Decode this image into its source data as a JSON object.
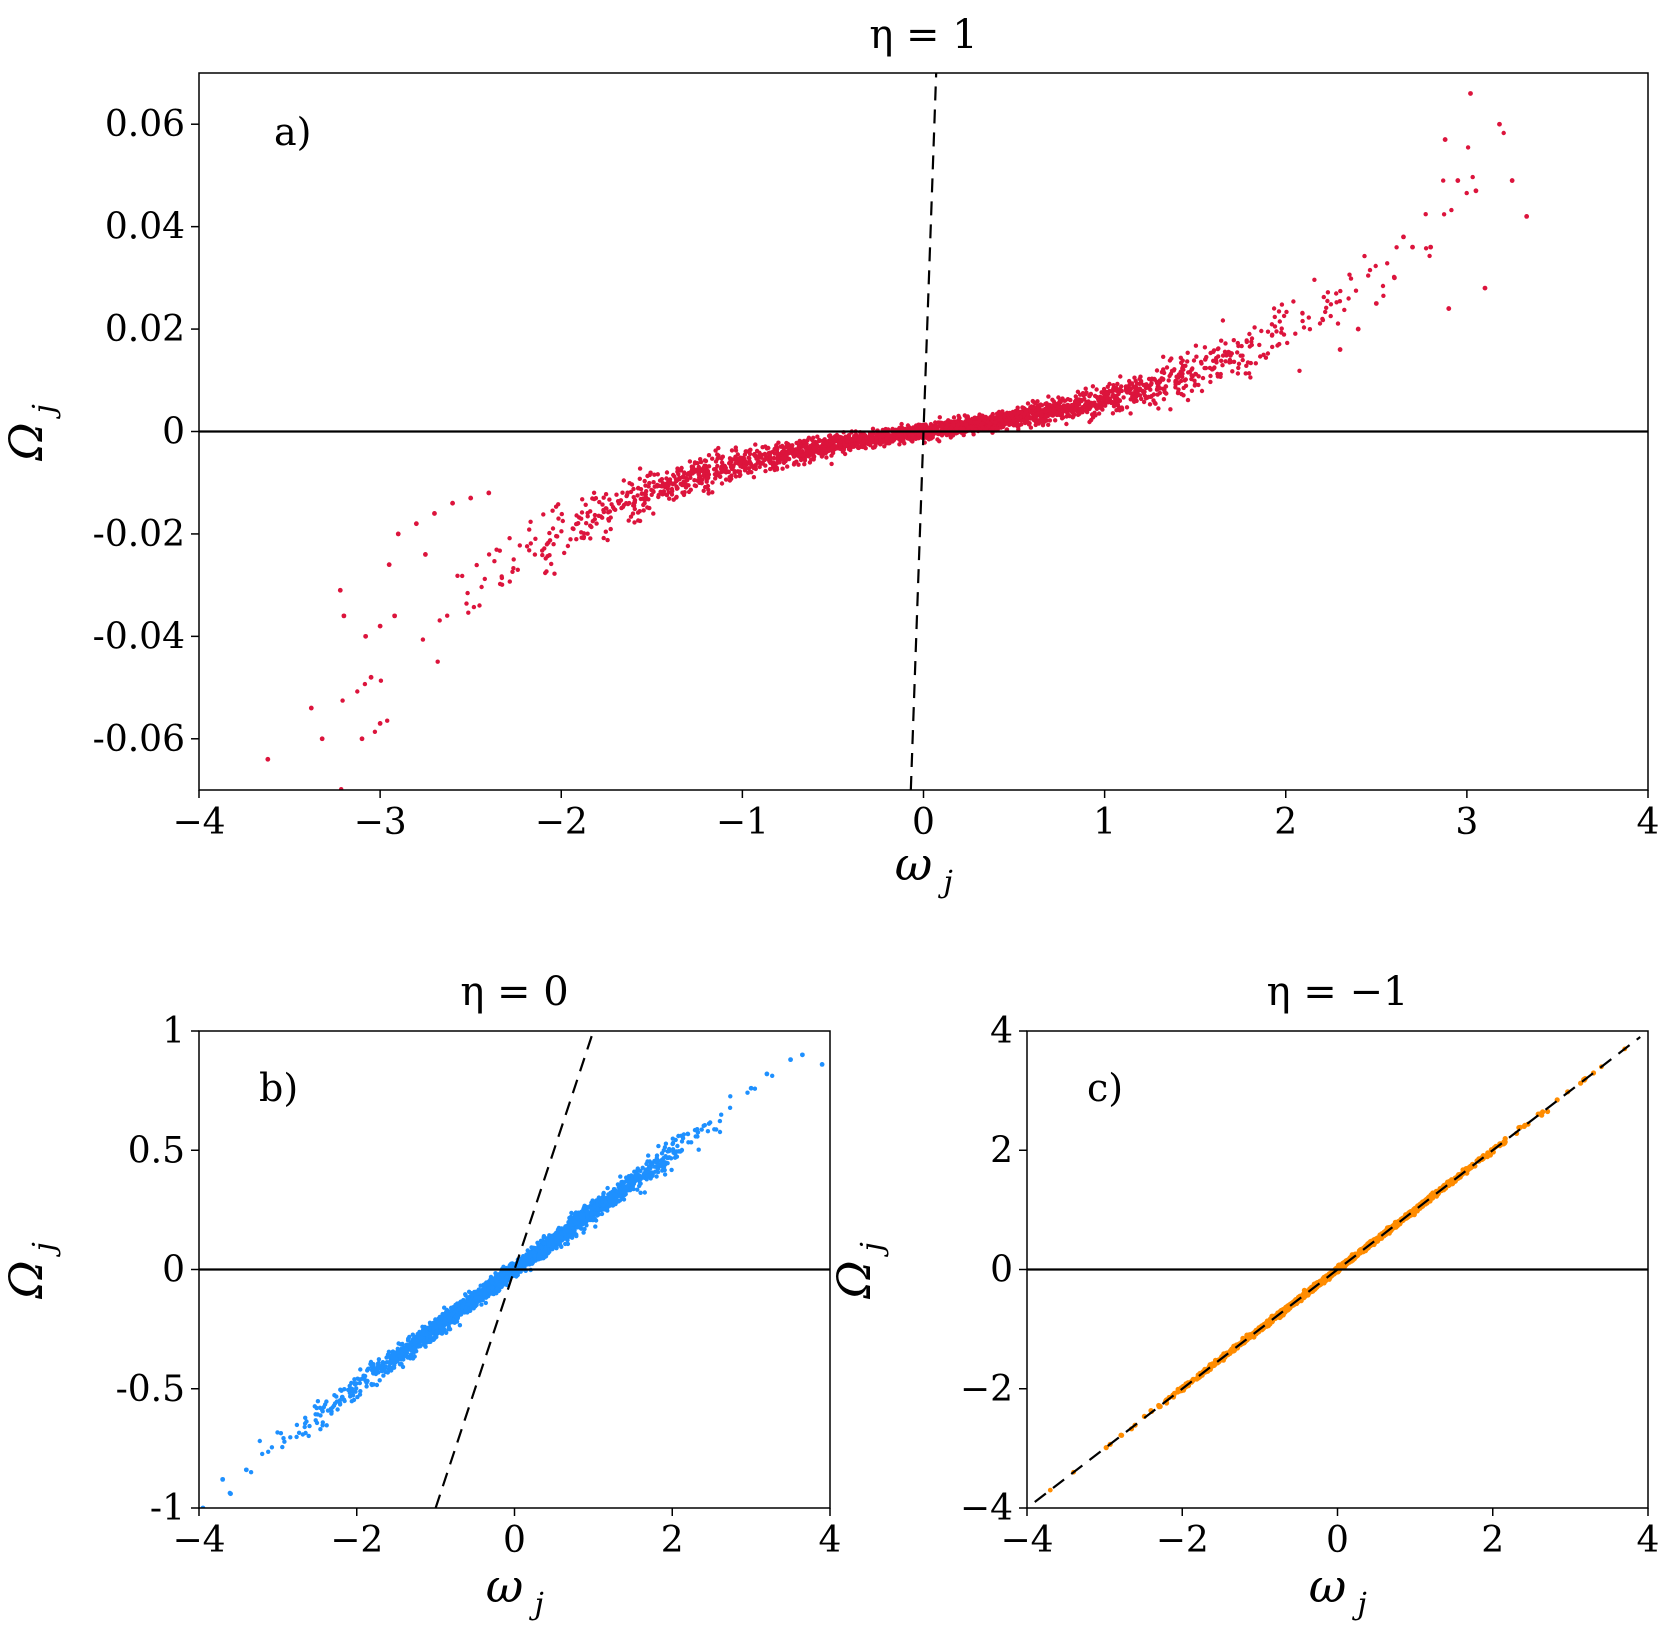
{
  "chart_data": [
    {
      "id": "a",
      "type": "scatter",
      "title": "η = 1",
      "panel_label": "a)",
      "xlabel": "ω",
      "xlabel_sub": "j",
      "ylabel": "Ω",
      "ylabel_sub": "j",
      "xlim": [
        -4,
        4
      ],
      "ylim": [
        -0.07,
        0.07
      ],
      "xticks": [
        -4,
        -3,
        -2,
        -1,
        0,
        1,
        2,
        3,
        4
      ],
      "xtick_labels": [
        "−4",
        "−3",
        "−2",
        "−1",
        "0",
        "1",
        "2",
        "3",
        "4"
      ],
      "yticks": [
        -0.06,
        -0.04,
        -0.02,
        0,
        0.02,
        0.04,
        0.06
      ],
      "ytick_labels": [
        "-0.06",
        "-0.04",
        "-0.02",
        "0",
        "0.02",
        "0.04",
        "0.06"
      ],
      "point_color": "#dc143c",
      "series": [
        {
          "trend": "Omega ≈ 0.005·ω + 0.0012·ω³ (spread grows with |ω|)",
          "points": [
            [
              -3.62,
              -0.064
            ],
            [
              -3.38,
              -0.054
            ],
            [
              -3.32,
              -0.06
            ],
            [
              -3.1,
              -0.06
            ],
            [
              -3.0,
              -0.057
            ],
            [
              -3.05,
              -0.048
            ],
            [
              -3.2,
              -0.036
            ],
            [
              -3.22,
              -0.031
            ],
            [
              -3.08,
              -0.04
            ],
            [
              -3.0,
              -0.038
            ],
            [
              -2.92,
              -0.036
            ],
            [
              -2.95,
              -0.026
            ],
            [
              -2.9,
              -0.02
            ],
            [
              -2.8,
              -0.018
            ],
            [
              -2.75,
              -0.024
            ],
            [
              -2.7,
              -0.016
            ],
            [
              -2.6,
              -0.014
            ],
            [
              -2.5,
              -0.013
            ],
            [
              -2.4,
              -0.012
            ],
            [
              3.02,
              0.066
            ],
            [
              3.18,
              0.06
            ],
            [
              3.25,
              0.049
            ],
            [
              3.33,
              0.042
            ],
            [
              2.88,
              0.057
            ],
            [
              2.95,
              0.049
            ],
            [
              3.05,
              0.047
            ],
            [
              2.65,
              0.038
            ],
            [
              2.7,
              0.036
            ],
            [
              2.8,
              0.036
            ],
            [
              3.1,
              0.028
            ],
            [
              2.9,
              0.024
            ],
            [
              2.6,
              0.03
            ],
            [
              2.5,
              0.025
            ],
            [
              2.4,
              0.02
            ],
            [
              2.3,
              0.016
            ]
          ]
        }
      ],
      "reference_lines": [
        {
          "style": "solid",
          "orientation": "horizontal",
          "y": 0
        },
        {
          "style": "dashed",
          "from": [
            -0.07,
            -0.07
          ],
          "to": [
            0.07,
            0.07
          ]
        }
      ]
    },
    {
      "id": "b",
      "type": "scatter",
      "title": "η = 0",
      "panel_label": "b)",
      "xlabel": "ω",
      "xlabel_sub": "j",
      "ylabel": "Ω",
      "ylabel_sub": "j",
      "xlim": [
        -4,
        4
      ],
      "ylim": [
        -1,
        1
      ],
      "xticks": [
        -4,
        -2,
        0,
        2,
        4
      ],
      "xtick_labels": [
        "−4",
        "−2",
        "0",
        "2",
        "4"
      ],
      "yticks": [
        -1,
        -0.5,
        0,
        0.5,
        1
      ],
      "ytick_labels": [
        "-1",
        "-0.5",
        "0",
        "0.5",
        "1"
      ],
      "point_color": "#1e90ff",
      "series": [
        {
          "trend": "Omega ≈ 0.245·ω (narrow band)",
          "points": [
            [
              -3.95,
              -1.0
            ],
            [
              -3.6,
              -0.94
            ],
            [
              -3.7,
              -0.88
            ],
            [
              -3.4,
              -0.84
            ],
            [
              3.9,
              0.86
            ],
            [
              3.65,
              0.9
            ],
            [
              3.5,
              0.88
            ],
            [
              3.2,
              0.82
            ],
            [
              3.0,
              0.76
            ]
          ]
        }
      ],
      "reference_lines": [
        {
          "style": "solid",
          "orientation": "horizontal",
          "y": 0
        },
        {
          "style": "dashed",
          "from": [
            -1,
            -1
          ],
          "to": [
            1,
            1
          ]
        }
      ]
    },
    {
      "id": "c",
      "type": "scatter",
      "title": "η = −1",
      "panel_label": "c)",
      "xlabel": "ω",
      "xlabel_sub": "j",
      "ylabel": "Ω",
      "ylabel_sub": "j",
      "xlim": [
        -4,
        4
      ],
      "ylim": [
        -4,
        4
      ],
      "xticks": [
        -4,
        -2,
        0,
        2,
        4
      ],
      "xtick_labels": [
        "−4",
        "−2",
        "0",
        "2",
        "4"
      ],
      "yticks": [
        -4,
        -2,
        0,
        2,
        4
      ],
      "ytick_labels": [
        "−4",
        "−2",
        "0",
        "2",
        "4"
      ],
      "point_color": "#ff8c00",
      "series": [
        {
          "trend": "Omega = ω",
          "points": [
            [
              -3.7,
              -3.7
            ],
            [
              -3.4,
              -3.4
            ],
            [
              3.7,
              3.7
            ],
            [
              3.4,
              3.4
            ]
          ]
        }
      ],
      "reference_lines": [
        {
          "style": "solid",
          "orientation": "horizontal",
          "y": 0
        },
        {
          "style": "dashed",
          "from": [
            -3.9,
            -3.9
          ],
          "to": [
            3.9,
            3.9
          ]
        }
      ]
    }
  ]
}
